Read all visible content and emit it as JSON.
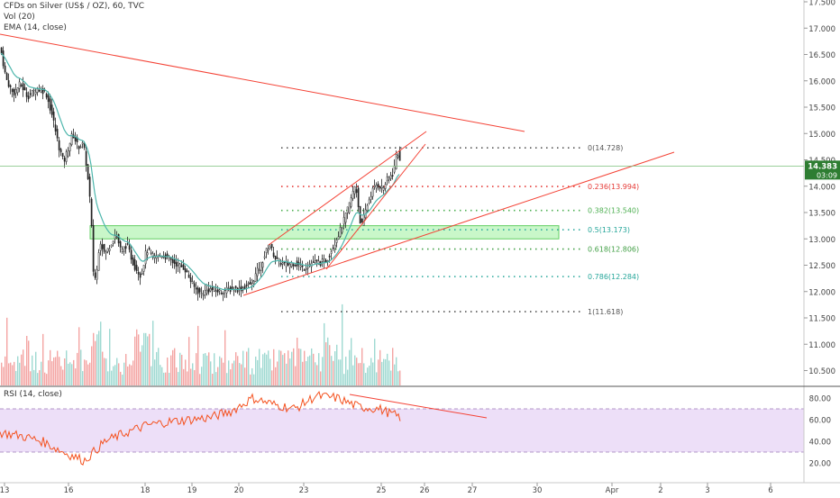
{
  "legend": {
    "symbol_line": "CFDs on Silver (US$ / OZ), 60, TVC",
    "vol": "Vol (20)",
    "ema": "EMA (14, close)",
    "rsi": "RSI (14, close)"
  },
  "price_axis": {
    "ticks": [
      "17.500",
      "17.000",
      "16.500",
      "16.000",
      "15.500",
      "15.000",
      "14.500",
      "14.000",
      "13.500",
      "13.000",
      "12.500",
      "12.000",
      "11.500",
      "11.000",
      "10.500"
    ],
    "tick_values": [
      17.5,
      17.0,
      16.5,
      16.0,
      15.5,
      15.0,
      14.5,
      14.0,
      13.5,
      13.0,
      12.5,
      12.0,
      11.5,
      11.0,
      10.5
    ],
    "current_price_label": "14.383",
    "current_price": 14.383,
    "countdown_label": "03:09"
  },
  "rsi_axis": {
    "ticks": [
      "80.00",
      "60.00",
      "40.00",
      "20.00"
    ],
    "tick_values": [
      80,
      60,
      40,
      20
    ],
    "band_upper": 70,
    "band_lower": 30
  },
  "time_axis": {
    "ticks": [
      "13",
      "16",
      "18",
      "19",
      "20",
      "23",
      "25",
      "26",
      "27",
      "30",
      "Apr",
      "2",
      "3",
      "6"
    ]
  },
  "fibonacci": {
    "levels": [
      {
        "ratio": 0,
        "price": 14.728,
        "label": "0(14.728)",
        "color": "#555555"
      },
      {
        "ratio": 0.236,
        "price": 13.994,
        "label": "0.236(13.994)",
        "color": "#e53935"
      },
      {
        "ratio": 0.382,
        "price": 13.54,
        "label": "0.382(13.540)",
        "color": "#4caf50"
      },
      {
        "ratio": 0.5,
        "price": 13.173,
        "label": "0.5(13.173)",
        "color": "#26a69a"
      },
      {
        "ratio": 0.618,
        "price": 12.806,
        "label": "0.618(12.806)",
        "color": "#43a047"
      },
      {
        "ratio": 0.786,
        "price": 12.284,
        "label": "0.786(12.284)",
        "color": "#26a69a"
      },
      {
        "ratio": 1,
        "price": 11.618,
        "label": "1(11.618)",
        "color": "#555555"
      }
    ]
  },
  "colors": {
    "up": "#26a69a",
    "down": "#ef5350",
    "candle_body": "#222222",
    "ema": "#4db6ac",
    "trendline": "#f44336",
    "rsi_line": "#f4511e",
    "rsi_band": "#ead9f7",
    "zone_fill": "#b7f5b7",
    "zone_stroke": "#2fbf2f",
    "last_price_bg": "#2e7d32",
    "volume_up": "#9fd9d2",
    "volume_down": "#f4a5a3"
  },
  "chart_data": {
    "type": "candlestick",
    "symbol": "CFDs on Silver (US$ / OZ)",
    "interval": "60",
    "approx_price_path": [
      {
        "time": "13",
        "price": 16.6
      },
      {
        "time": "13",
        "price": 15.9
      },
      {
        "time": "16",
        "price": 15.0
      },
      {
        "time": "16",
        "price": 14.5
      },
      {
        "time": "16",
        "price": 13.2
      },
      {
        "time": "16",
        "price": 12.2
      },
      {
        "time": "18",
        "price": 12.9
      },
      {
        "time": "18",
        "price": 12.6
      },
      {
        "time": "19",
        "price": 12.1
      },
      {
        "time": "19",
        "price": 11.95
      },
      {
        "time": "20",
        "price": 12.05
      },
      {
        "time": "23",
        "price": 12.45
      },
      {
        "time": "23",
        "price": 12.9
      },
      {
        "time": "23",
        "price": 12.45
      },
      {
        "time": "23",
        "price": 12.5
      },
      {
        "time": "25",
        "price": 13.9
      },
      {
        "time": "25",
        "price": 14.7
      },
      {
        "time": "25",
        "price": 14.383
      }
    ],
    "support_resistance_zone": {
      "from": 13.0,
      "to": 13.25
    },
    "rsi_approx_path": [
      48,
      45,
      40,
      30,
      22,
      40,
      48,
      55,
      58,
      60,
      62,
      68,
      80,
      74,
      70,
      82,
      80,
      72,
      70,
      62
    ],
    "ylim": [
      10.3,
      17.6
    ]
  }
}
